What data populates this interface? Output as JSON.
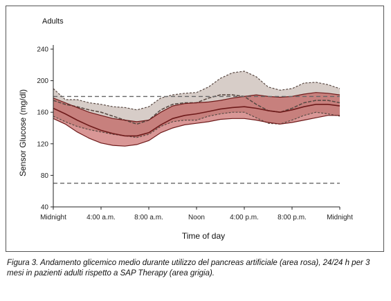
{
  "chart_data": {
    "type": "area",
    "title": "Adults",
    "xlabel": "Time of day",
    "ylabel": "Sensor Glucose (mg/dl)",
    "xlim": [
      0,
      24
    ],
    "ylim": [
      40,
      240
    ],
    "y_ticks": [
      40,
      80,
      120,
      160,
      200,
      240
    ],
    "x_ticks": [
      {
        "value": 0,
        "label": "Midnight"
      },
      {
        "value": 4,
        "label": "4:00 a.m."
      },
      {
        "value": 8,
        "label": "8:00 a.m."
      },
      {
        "value": 12,
        "label": "Noon"
      },
      {
        "value": 16,
        "label": "4:00 p.m."
      },
      {
        "value": 20,
        "label": "8:00 p.m."
      },
      {
        "value": 24,
        "label": "Midnight"
      }
    ],
    "reference_lines": [
      180,
      70
    ],
    "grid": false,
    "x": [
      0,
      1,
      2,
      3,
      4,
      5,
      6,
      7,
      8,
      9,
      10,
      11,
      12,
      13,
      14,
      15,
      16,
      17,
      18,
      19,
      20,
      21,
      22,
      23,
      24
    ],
    "series": [
      {
        "key": "sap",
        "color": "#d3c8c2",
        "line_color": "#5a4a44",
        "upper": [
          190,
          176,
          176,
          172,
          170,
          167,
          166,
          163,
          167,
          178,
          182,
          184,
          185,
          192,
          203,
          210,
          212,
          205,
          192,
          188,
          190,
          197,
          198,
          195,
          190
        ],
        "median": [
          175,
          170,
          167,
          163,
          160,
          155,
          150,
          145,
          150,
          163,
          170,
          172,
          172,
          178,
          182,
          182,
          180,
          170,
          162,
          160,
          165,
          172,
          175,
          175,
          172
        ],
        "lower": [
          155,
          148,
          142,
          138,
          135,
          132,
          130,
          128,
          132,
          142,
          148,
          150,
          150,
          155,
          158,
          160,
          160,
          153,
          146,
          145,
          150,
          156,
          160,
          158,
          155
        ]
      },
      {
        "key": "artificial_pancreas",
        "color": "#b9413f",
        "line_color": "#6e1a1a",
        "upper": [
          178,
          172,
          166,
          160,
          156,
          152,
          150,
          148,
          150,
          160,
          168,
          171,
          172,
          173,
          175,
          178,
          180,
          182,
          180,
          179,
          180,
          183,
          185,
          184,
          182
        ],
        "median": [
          165,
          158,
          150,
          143,
          137,
          133,
          130,
          130,
          134,
          144,
          152,
          156,
          158,
          161,
          164,
          166,
          167,
          165,
          162,
          160,
          163,
          167,
          170,
          170,
          168
        ],
        "lower": [
          152,
          145,
          135,
          127,
          121,
          118,
          117,
          119,
          124,
          134,
          140,
          144,
          146,
          148,
          151,
          152,
          152,
          150,
          147,
          145,
          147,
          150,
          153,
          156,
          156
        ]
      }
    ]
  },
  "caption": "Figura 3. Andamento glicemico medio durante utilizzo del pancreas artificiale (area rosa), 24/24 h per 3 mesi in pazienti adulti rispetto a SAP Therapy (area grigia)."
}
